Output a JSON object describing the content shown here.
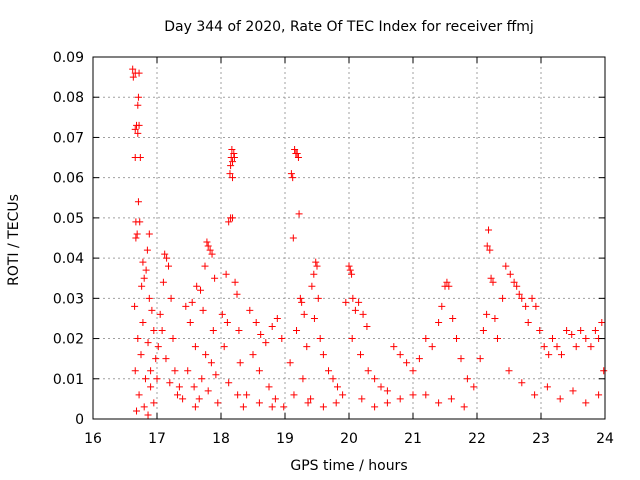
{
  "chart_data": {
    "type": "scatter",
    "title": "Day 344 of 2020, Rate Of TEC Index for receiver ffmj",
    "xlabel": "GPS time / hours",
    "ylabel": "ROTI / TECUs",
    "xlim": [
      16,
      24
    ],
    "ylim": [
      0,
      0.09
    ],
    "x_ticks": [
      "16",
      "17",
      "18",
      "19",
      "20",
      "21",
      "22",
      "23",
      "24"
    ],
    "y_ticks": [
      "0",
      "0.01",
      "0.02",
      "0.03",
      "0.04",
      "0.05",
      "0.06",
      "0.07",
      "0.08",
      "0.09"
    ],
    "grid": true,
    "marker": "+",
    "color": "#ff0000",
    "series": [
      {
        "name": "ROTI",
        "points": [
          [
            16.62,
            0.087
          ],
          [
            16.66,
            0.086
          ],
          [
            16.72,
            0.086
          ],
          [
            16.63,
            0.085
          ],
          [
            16.71,
            0.08
          ],
          [
            16.7,
            0.078
          ],
          [
            16.68,
            0.073
          ],
          [
            16.72,
            0.073
          ],
          [
            16.66,
            0.072
          ],
          [
            16.7,
            0.071
          ],
          [
            16.66,
            0.065
          ],
          [
            16.74,
            0.065
          ],
          [
            16.71,
            0.054
          ],
          [
            16.73,
            0.049
          ],
          [
            16.67,
            0.049
          ],
          [
            16.69,
            0.046
          ],
          [
            16.67,
            0.045
          ],
          [
            16.88,
            0.046
          ],
          [
            16.85,
            0.042
          ],
          [
            16.78,
            0.039
          ],
          [
            16.83,
            0.037
          ],
          [
            16.8,
            0.035
          ],
          [
            16.76,
            0.033
          ],
          [
            16.88,
            0.03
          ],
          [
            16.65,
            0.028
          ],
          [
            16.92,
            0.027
          ],
          [
            16.78,
            0.024
          ],
          [
            16.95,
            0.022
          ],
          [
            16.7,
            0.02
          ],
          [
            16.86,
            0.019
          ],
          [
            16.75,
            0.016
          ],
          [
            16.98,
            0.015
          ],
          [
            16.66,
            0.012
          ],
          [
            16.82,
            0.01
          ],
          [
            16.9,
            0.008
          ],
          [
            16.72,
            0.006
          ],
          [
            16.95,
            0.004
          ],
          [
            16.8,
            0.003
          ],
          [
            16.68,
            0.002
          ],
          [
            16.86,
            0.001
          ],
          [
            17.02,
            0.018
          ],
          [
            17.08,
            0.022
          ],
          [
            17.12,
            0.041
          ],
          [
            17.15,
            0.04
          ],
          [
            17.18,
            0.038
          ],
          [
            17.1,
            0.034
          ],
          [
            17.22,
            0.03
          ],
          [
            17.05,
            0.026
          ],
          [
            17.25,
            0.02
          ],
          [
            17.14,
            0.015
          ],
          [
            17.28,
            0.012
          ],
          [
            17.2,
            0.009
          ],
          [
            17.32,
            0.006
          ],
          [
            17.4,
            0.005
          ],
          [
            17.45,
            0.028
          ],
          [
            17.55,
            0.029
          ],
          [
            17.62,
            0.033
          ],
          [
            17.68,
            0.032
          ],
          [
            17.52,
            0.024
          ],
          [
            17.6,
            0.018
          ],
          [
            17.48,
            0.012
          ],
          [
            17.58,
            0.008
          ],
          [
            17.66,
            0.005
          ],
          [
            17.78,
            0.044
          ],
          [
            17.8,
            0.043
          ],
          [
            17.83,
            0.042
          ],
          [
            17.86,
            0.041
          ],
          [
            17.75,
            0.038
          ],
          [
            17.9,
            0.035
          ],
          [
            17.72,
            0.027
          ],
          [
            17.88,
            0.022
          ],
          [
            17.76,
            0.016
          ],
          [
            17.92,
            0.011
          ],
          [
            17.8,
            0.007
          ],
          [
            17.95,
            0.004
          ],
          [
            18.02,
            0.026
          ],
          [
            18.08,
            0.036
          ],
          [
            18.12,
            0.049
          ],
          [
            18.15,
            0.05
          ],
          [
            18.18,
            0.05
          ],
          [
            18.14,
            0.061
          ],
          [
            18.18,
            0.06
          ],
          [
            18.15,
            0.063
          ],
          [
            18.18,
            0.064
          ],
          [
            18.16,
            0.065
          ],
          [
            18.2,
            0.066
          ],
          [
            18.17,
            0.067
          ],
          [
            18.21,
            0.065
          ],
          [
            18.22,
            0.034
          ],
          [
            18.25,
            0.031
          ],
          [
            18.1,
            0.024
          ],
          [
            18.28,
            0.022
          ],
          [
            18.05,
            0.018
          ],
          [
            18.3,
            0.014
          ],
          [
            18.12,
            0.009
          ],
          [
            18.26,
            0.006
          ],
          [
            18.35,
            0.003
          ],
          [
            18.45,
            0.027
          ],
          [
            18.55,
            0.024
          ],
          [
            18.62,
            0.021
          ],
          [
            18.7,
            0.019
          ],
          [
            18.8,
            0.023
          ],
          [
            18.88,
            0.025
          ],
          [
            18.95,
            0.02
          ],
          [
            18.5,
            0.016
          ],
          [
            18.6,
            0.012
          ],
          [
            18.75,
            0.008
          ],
          [
            18.85,
            0.005
          ],
          [
            18.98,
            0.003
          ],
          [
            19.1,
            0.061
          ],
          [
            19.12,
            0.06
          ],
          [
            19.15,
            0.067
          ],
          [
            19.17,
            0.066
          ],
          [
            19.19,
            0.066
          ],
          [
            19.21,
            0.065
          ],
          [
            19.13,
            0.045
          ],
          [
            19.22,
            0.051
          ],
          [
            19.24,
            0.03
          ],
          [
            19.26,
            0.029
          ],
          [
            19.3,
            0.026
          ],
          [
            19.18,
            0.022
          ],
          [
            19.34,
            0.018
          ],
          [
            19.08,
            0.014
          ],
          [
            19.28,
            0.01
          ],
          [
            19.14,
            0.006
          ],
          [
            19.36,
            0.004
          ],
          [
            19.42,
            0.033
          ],
          [
            19.45,
            0.036
          ],
          [
            19.48,
            0.039
          ],
          [
            19.5,
            0.038
          ],
          [
            19.52,
            0.03
          ],
          [
            19.46,
            0.025
          ],
          [
            19.55,
            0.02
          ],
          [
            19.6,
            0.016
          ],
          [
            19.68,
            0.012
          ],
          [
            19.75,
            0.01
          ],
          [
            19.82,
            0.008
          ],
          [
            19.9,
            0.006
          ],
          [
            19.95,
            0.029
          ],
          [
            20.0,
            0.038
          ],
          [
            20.02,
            0.037
          ],
          [
            20.04,
            0.036
          ],
          [
            20.06,
            0.03
          ],
          [
            20.1,
            0.027
          ],
          [
            20.15,
            0.029
          ],
          [
            20.22,
            0.026
          ],
          [
            20.28,
            0.023
          ],
          [
            20.05,
            0.02
          ],
          [
            20.18,
            0.016
          ],
          [
            20.3,
            0.012
          ],
          [
            20.4,
            0.01
          ],
          [
            20.5,
            0.008
          ],
          [
            20.6,
            0.007
          ],
          [
            20.7,
            0.018
          ],
          [
            20.8,
            0.016
          ],
          [
            20.9,
            0.014
          ],
          [
            21.0,
            0.012
          ],
          [
            21.1,
            0.015
          ],
          [
            21.2,
            0.02
          ],
          [
            21.3,
            0.018
          ],
          [
            21.4,
            0.024
          ],
          [
            21.5,
            0.033
          ],
          [
            21.53,
            0.034
          ],
          [
            21.56,
            0.033
          ],
          [
            21.45,
            0.028
          ],
          [
            21.62,
            0.025
          ],
          [
            21.68,
            0.02
          ],
          [
            21.75,
            0.015
          ],
          [
            21.85,
            0.01
          ],
          [
            21.95,
            0.008
          ],
          [
            22.05,
            0.015
          ],
          [
            22.1,
            0.022
          ],
          [
            22.15,
            0.026
          ],
          [
            22.18,
            0.047
          ],
          [
            22.16,
            0.043
          ],
          [
            22.2,
            0.042
          ],
          [
            22.22,
            0.035
          ],
          [
            22.25,
            0.034
          ],
          [
            22.28,
            0.025
          ],
          [
            22.32,
            0.02
          ],
          [
            22.4,
            0.03
          ],
          [
            22.45,
            0.038
          ],
          [
            22.52,
            0.036
          ],
          [
            22.58,
            0.034
          ],
          [
            22.62,
            0.033
          ],
          [
            22.66,
            0.031
          ],
          [
            22.7,
            0.03
          ],
          [
            22.76,
            0.028
          ],
          [
            22.8,
            0.024
          ],
          [
            22.86,
            0.03
          ],
          [
            22.92,
            0.028
          ],
          [
            22.98,
            0.022
          ],
          [
            23.05,
            0.018
          ],
          [
            23.12,
            0.016
          ],
          [
            23.18,
            0.02
          ],
          [
            23.25,
            0.018
          ],
          [
            23.32,
            0.016
          ],
          [
            23.4,
            0.022
          ],
          [
            23.48,
            0.021
          ],
          [
            23.55,
            0.018
          ],
          [
            23.62,
            0.022
          ],
          [
            23.7,
            0.02
          ],
          [
            23.78,
            0.018
          ],
          [
            23.85,
            0.022
          ],
          [
            23.9,
            0.02
          ],
          [
            23.95,
            0.024
          ],
          [
            22.5,
            0.012
          ],
          [
            22.7,
            0.009
          ],
          [
            22.9,
            0.006
          ],
          [
            23.1,
            0.008
          ],
          [
            23.3,
            0.005
          ],
          [
            23.5,
            0.007
          ],
          [
            23.7,
            0.004
          ],
          [
            23.9,
            0.006
          ],
          [
            23.98,
            0.012
          ],
          [
            21.2,
            0.006
          ],
          [
            21.4,
            0.004
          ],
          [
            21.6,
            0.005
          ],
          [
            21.8,
            0.003
          ],
          [
            20.2,
            0.005
          ],
          [
            20.4,
            0.003
          ],
          [
            20.6,
            0.004
          ],
          [
            20.8,
            0.005
          ],
          [
            21.0,
            0.006
          ],
          [
            19.4,
            0.005
          ],
          [
            19.6,
            0.003
          ],
          [
            19.8,
            0.004
          ],
          [
            18.4,
            0.006
          ],
          [
            18.6,
            0.004
          ],
          [
            18.8,
            0.003
          ],
          [
            17.6,
            0.003
          ],
          [
            17.7,
            0.01
          ],
          [
            17.85,
            0.014
          ],
          [
            16.9,
            0.012
          ],
          [
            17.0,
            0.01
          ],
          [
            17.35,
            0.008
          ]
        ]
      }
    ]
  }
}
